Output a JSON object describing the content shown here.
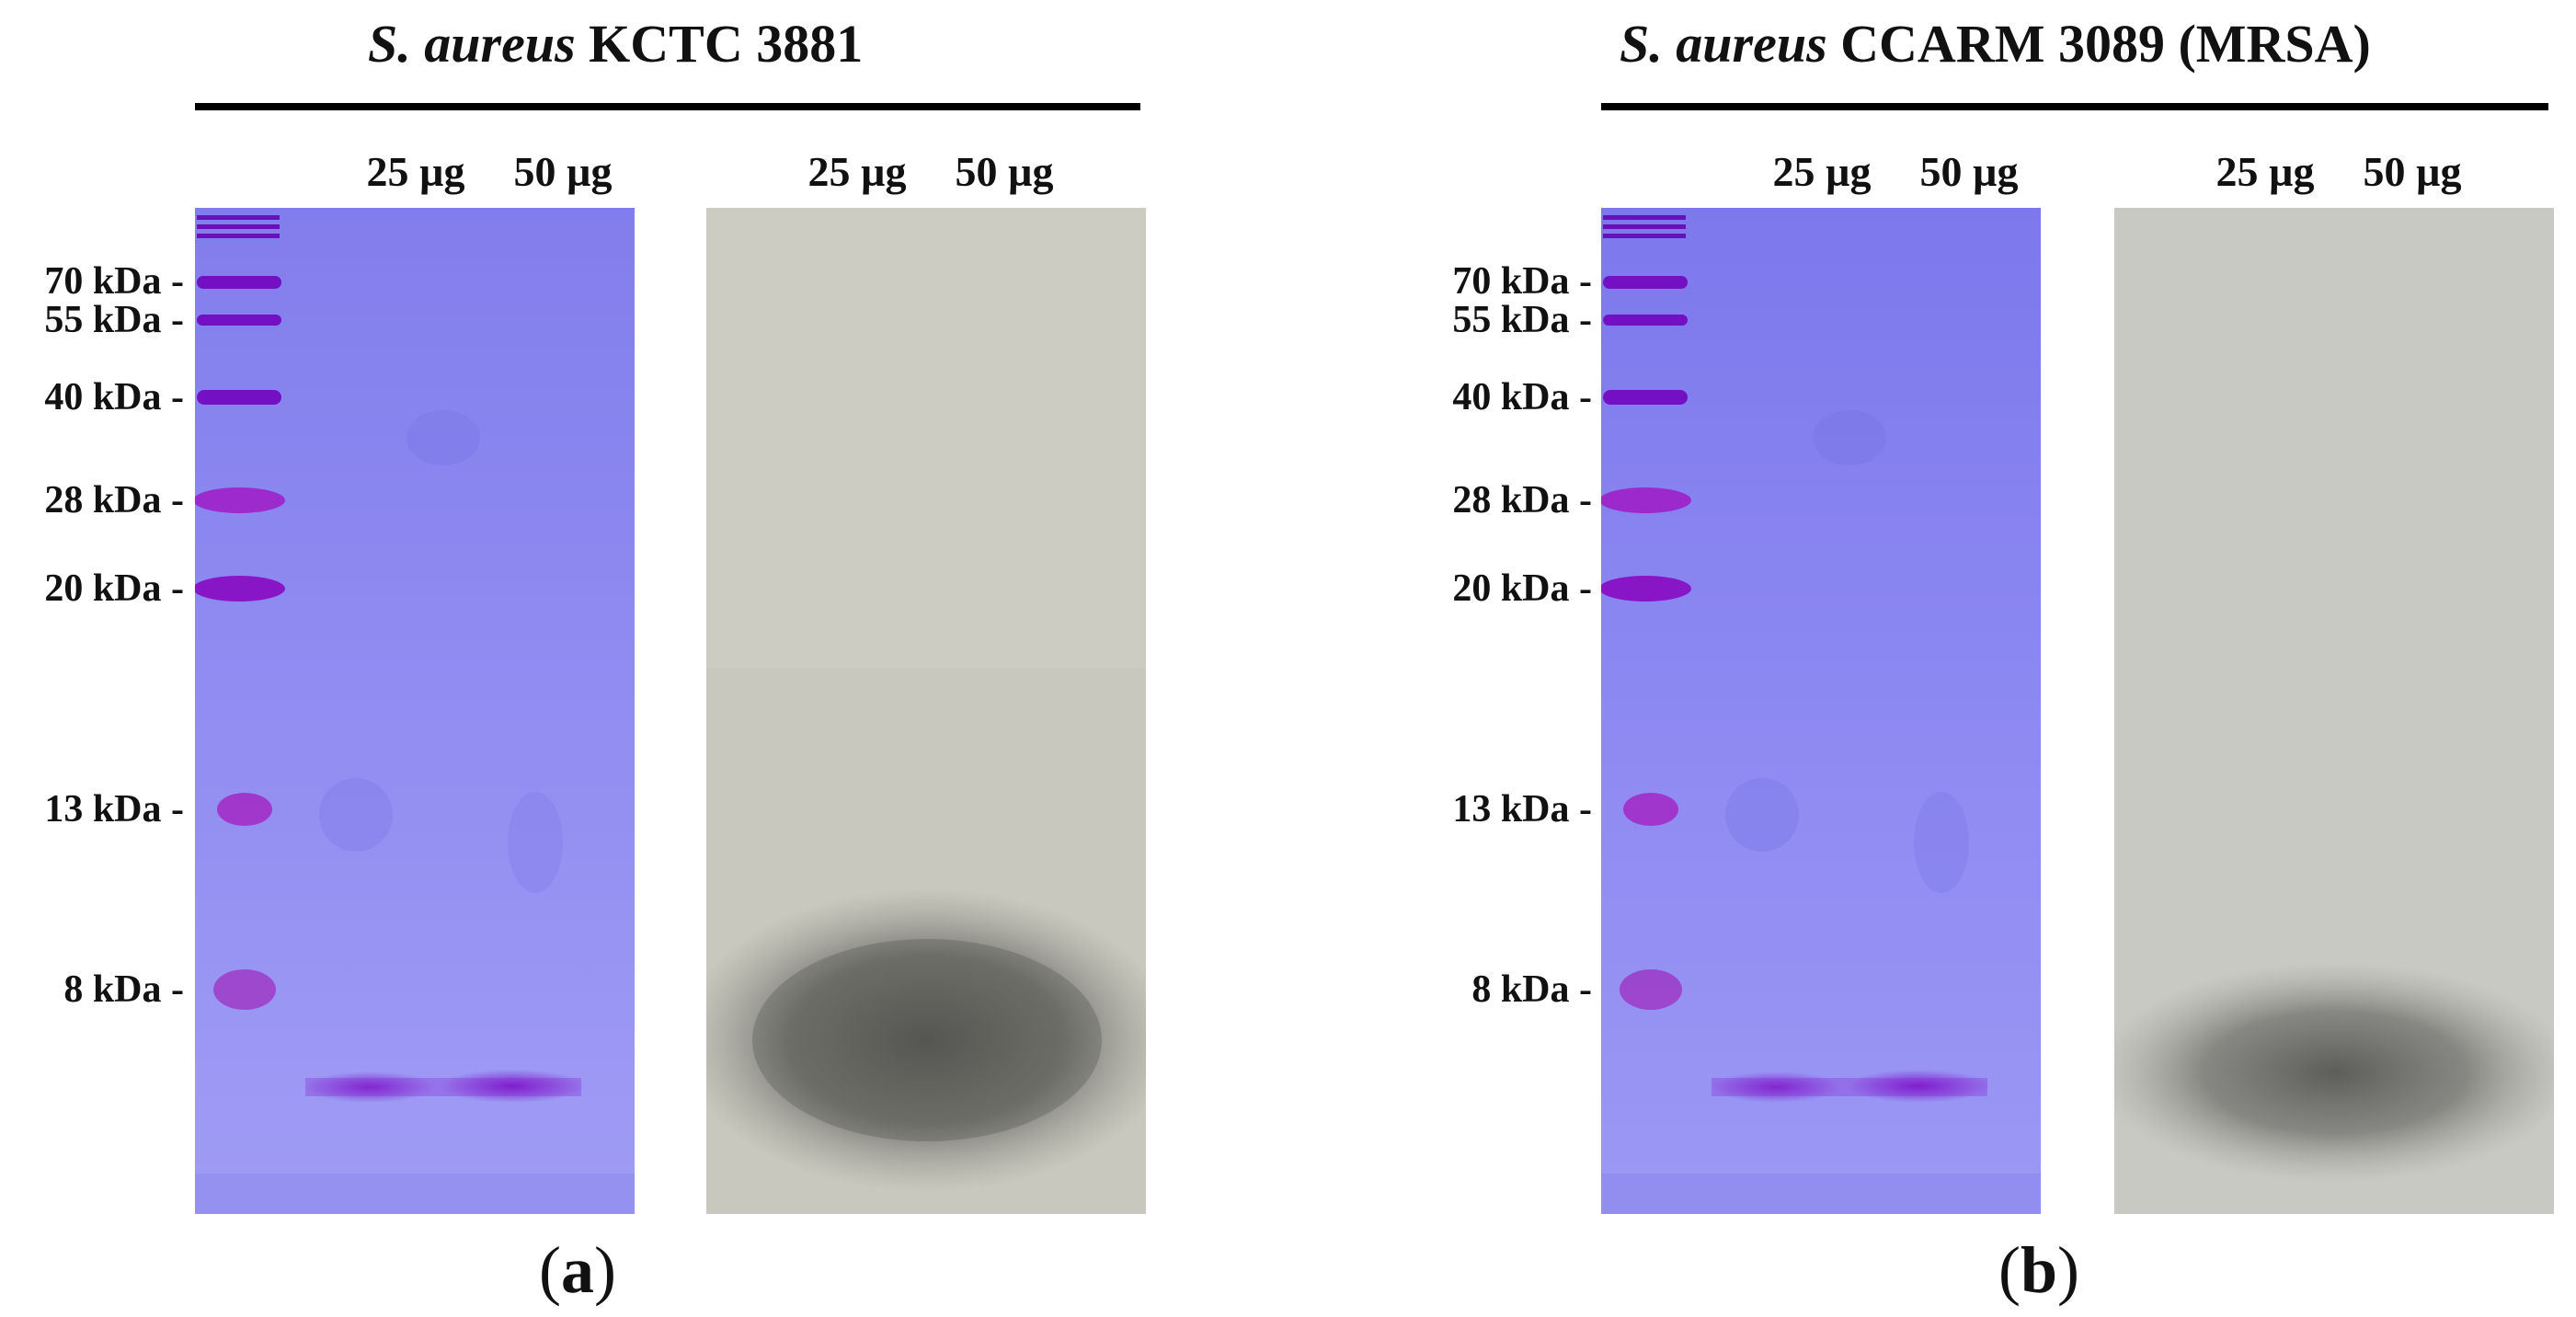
{
  "panels": [
    {
      "title_species": "S. aureus",
      "title_strain": "KCTC 3881",
      "lane_labels_gel": [
        "25 µg",
        "50 µg"
      ],
      "lane_labels_zymogram": [
        "25 µg",
        "50 µg"
      ],
      "marker_labels": [
        "70 kDa -",
        "55 kDa -",
        "40 kDa -",
        "28 kDa -",
        "20 kDa -",
        "13 kDa -",
        "8 kDa -"
      ],
      "caption_open": "(",
      "caption_letter": "a",
      "caption_close": ")"
    },
    {
      "title_species": "S. aureus",
      "title_strain": "CCARM 3089 (MRSA)",
      "lane_labels_gel": [
        "25 µg",
        "50 µg"
      ],
      "lane_labels_zymogram": [
        "25 µg",
        "50 µg"
      ],
      "marker_labels": [
        "70 kDa -",
        "55 kDa -",
        "40 kDa -",
        "28 kDa -",
        "20 kDa -",
        "13 kDa -",
        "8 kDa -"
      ],
      "caption_open": "(",
      "caption_letter": "b",
      "caption_close": ")"
    }
  ],
  "colors": {
    "gel_background": "#8a86f0",
    "marker_band": "#7a10c8",
    "sample_band": "#8a2fd6",
    "zymogram_background": "#c7c7bd",
    "clearing_zone": "#5a5a56"
  }
}
